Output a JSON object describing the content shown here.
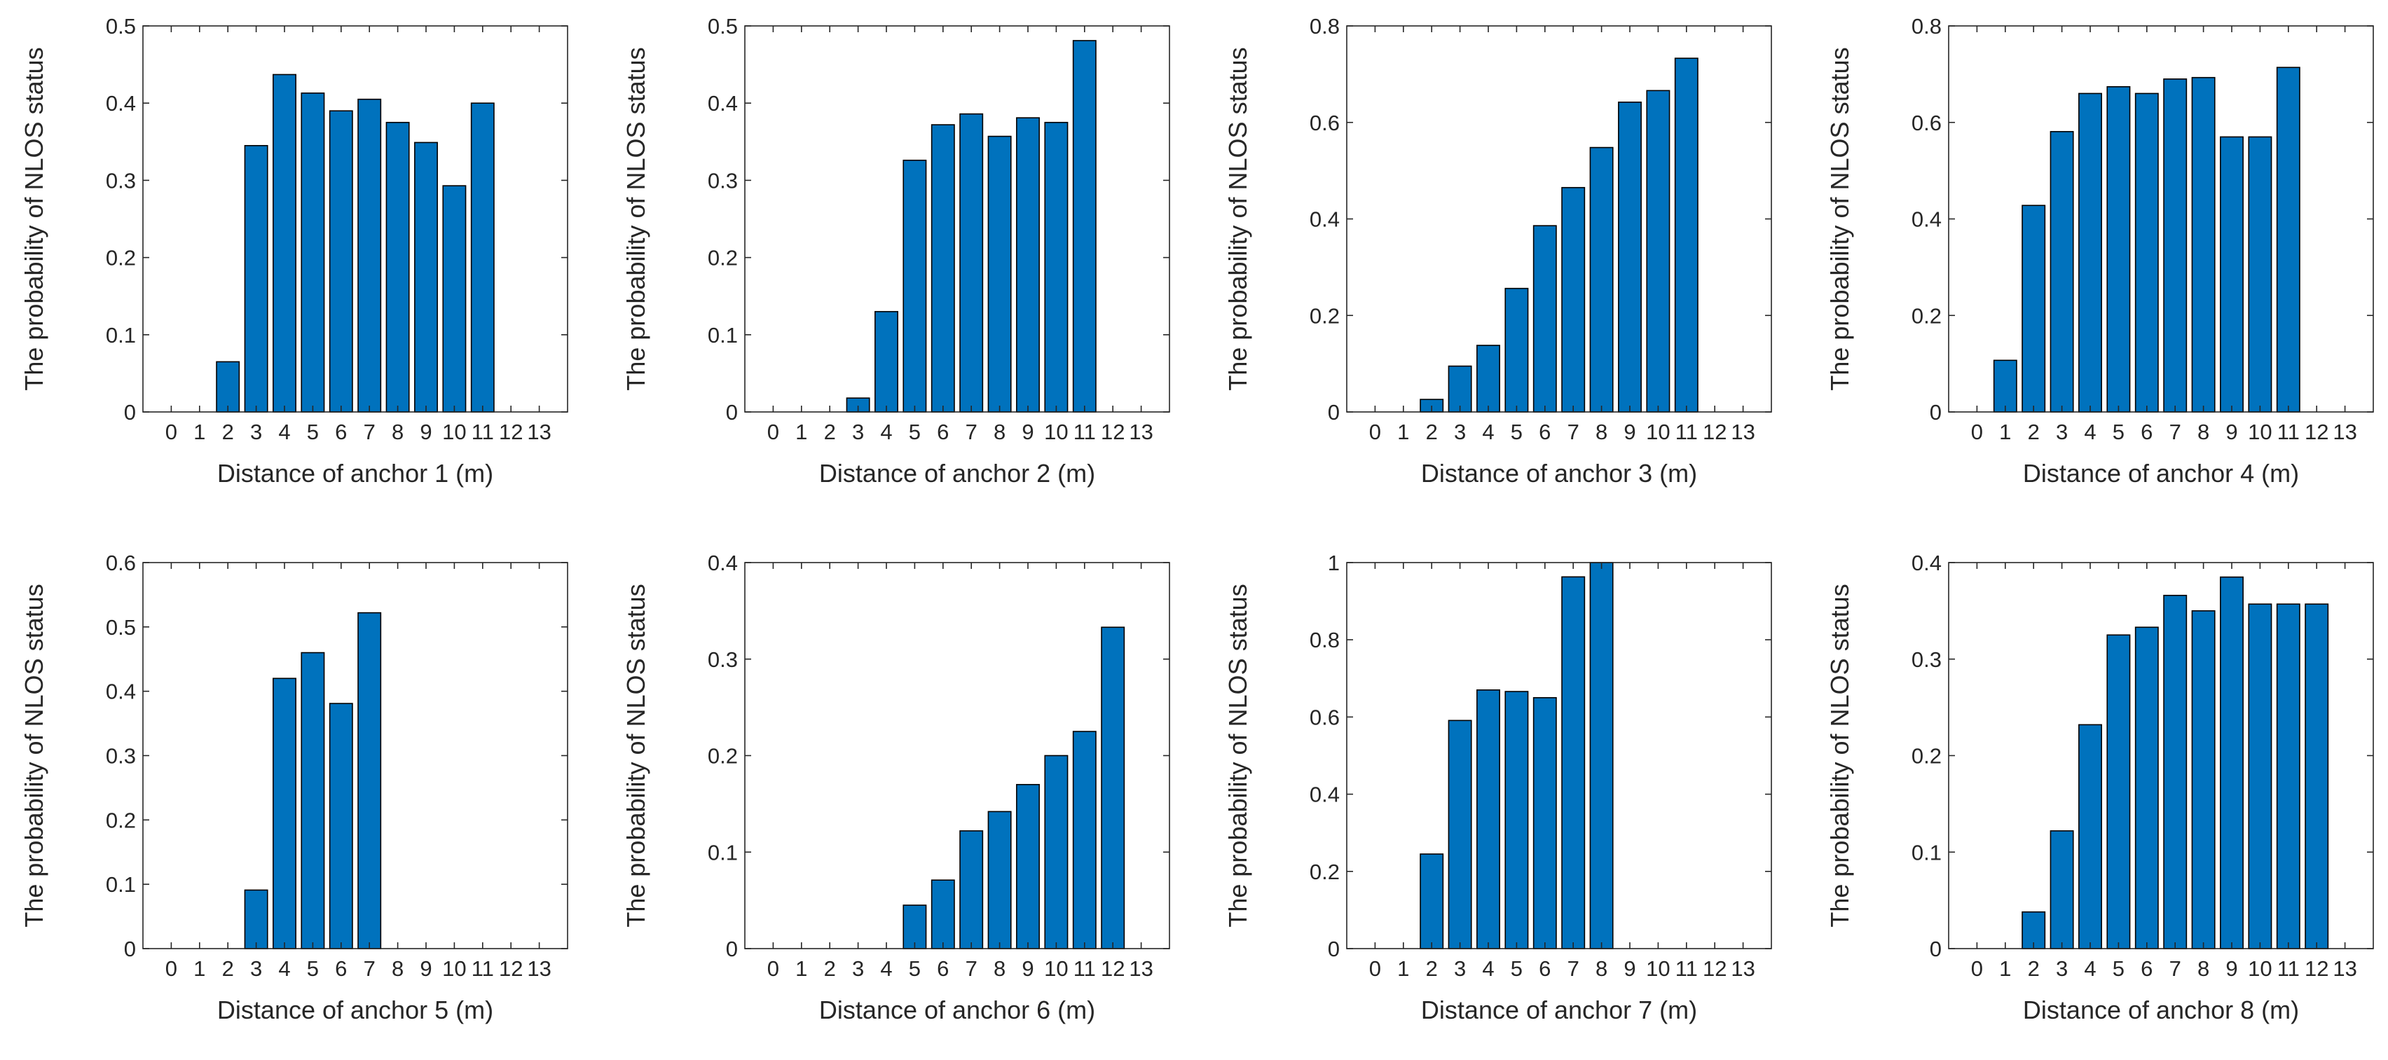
{
  "figure": {
    "bar_color": "#0072BD",
    "edge_color": "#000000",
    "axis_color": "#262626",
    "background": "#ffffff"
  },
  "chart_data": [
    {
      "type": "bar",
      "xlabel": "Distance of anchor 1 (m)",
      "ylabel": "The probability of NLOS status",
      "categories": [
        "0",
        "1",
        "2",
        "3",
        "4",
        "5",
        "6",
        "7",
        "8",
        "9",
        "10",
        "11",
        "12",
        "13"
      ],
      "values": [
        0,
        0,
        0.065,
        0.345,
        0.437,
        0.413,
        0.39,
        0.405,
        0.375,
        0.349,
        0.293,
        0.4,
        0,
        0
      ],
      "ylim": [
        0,
        0.5
      ],
      "yticks": [
        0,
        0.1,
        0.2,
        0.3,
        0.4,
        0.5
      ],
      "ytick_labels": [
        "0",
        "0.1",
        "0.2",
        "0.3",
        "0.4",
        "0.5"
      ]
    },
    {
      "type": "bar",
      "xlabel": "Distance of anchor 2 (m)",
      "ylabel": "The probability of NLOS status",
      "categories": [
        "0",
        "1",
        "2",
        "3",
        "4",
        "5",
        "6",
        "7",
        "8",
        "9",
        "10",
        "11",
        "12",
        "13"
      ],
      "values": [
        0,
        0,
        0,
        0.018,
        0.13,
        0.326,
        0.372,
        0.386,
        0.357,
        0.381,
        0.375,
        0.481,
        0,
        0
      ],
      "ylim": [
        0,
        0.5
      ],
      "yticks": [
        0,
        0.1,
        0.2,
        0.3,
        0.4,
        0.5
      ],
      "ytick_labels": [
        "0",
        "0.1",
        "0.2",
        "0.3",
        "0.4",
        "0.5"
      ]
    },
    {
      "type": "bar",
      "xlabel": "Distance of anchor 3 (m)",
      "ylabel": "The probability of NLOS status",
      "categories": [
        "0",
        "1",
        "2",
        "3",
        "4",
        "5",
        "6",
        "7",
        "8",
        "9",
        "10",
        "11",
        "12",
        "13"
      ],
      "values": [
        0,
        0,
        0.026,
        0.095,
        0.138,
        0.256,
        0.386,
        0.465,
        0.548,
        0.642,
        0.666,
        0.733,
        0,
        0
      ],
      "ylim": [
        0,
        0.8
      ],
      "yticks": [
        0,
        0.2,
        0.4,
        0.6,
        0.8
      ],
      "ytick_labels": [
        "0",
        "0.2",
        "0.4",
        "0.6",
        "0.8"
      ]
    },
    {
      "type": "bar",
      "xlabel": "Distance of anchor 4 (m)",
      "ylabel": "The probability of NLOS status",
      "categories": [
        "0",
        "1",
        "2",
        "3",
        "4",
        "5",
        "6",
        "7",
        "8",
        "9",
        "10",
        "11",
        "12",
        "13"
      ],
      "values": [
        0,
        0.107,
        0.428,
        0.581,
        0.66,
        0.674,
        0.66,
        0.69,
        0.693,
        0.57,
        0.57,
        0.714,
        0,
        0
      ],
      "ylim": [
        0,
        0.8
      ],
      "yticks": [
        0,
        0.2,
        0.4,
        0.6,
        0.8
      ],
      "ytick_labels": [
        "0",
        "0.2",
        "0.4",
        "0.6",
        "0.8"
      ]
    },
    {
      "type": "bar",
      "xlabel": "Distance of anchor 5 (m)",
      "ylabel": "The probability of NLOS status",
      "categories": [
        "0",
        "1",
        "2",
        "3",
        "4",
        "5",
        "6",
        "7",
        "8",
        "9",
        "10",
        "11",
        "12",
        "13"
      ],
      "values": [
        0,
        0,
        0,
        0.091,
        0.42,
        0.46,
        0.381,
        0.522,
        0,
        0,
        0,
        0,
        0,
        0
      ],
      "ylim": [
        0,
        0.6
      ],
      "yticks": [
        0,
        0.1,
        0.2,
        0.3,
        0.4,
        0.5,
        0.6
      ],
      "ytick_labels": [
        "0",
        "0.1",
        "0.2",
        "0.3",
        "0.4",
        "0.5",
        "0.6"
      ]
    },
    {
      "type": "bar",
      "xlabel": "Distance of anchor 6 (m)",
      "ylabel": "The probability of NLOS status",
      "categories": [
        "0",
        "1",
        "2",
        "3",
        "4",
        "5",
        "6",
        "7",
        "8",
        "9",
        "10",
        "11",
        "12",
        "13"
      ],
      "values": [
        0,
        0,
        0,
        0,
        0,
        0.045,
        0.071,
        0.122,
        0.142,
        0.17,
        0.2,
        0.225,
        0.333,
        0
      ],
      "ylim": [
        0,
        0.4
      ],
      "yticks": [
        0,
        0.1,
        0.2,
        0.3,
        0.4
      ],
      "ytick_labels": [
        "0",
        "0.1",
        "0.2",
        "0.3",
        "0.4"
      ]
    },
    {
      "type": "bar",
      "xlabel": "Distance of anchor 7 (m)",
      "ylabel": "The probability of NLOS status",
      "categories": [
        "0",
        "1",
        "2",
        "3",
        "4",
        "5",
        "6",
        "7",
        "8",
        "9",
        "10",
        "11",
        "12",
        "13"
      ],
      "values": [
        0,
        0,
        0.245,
        0.591,
        0.67,
        0.666,
        0.65,
        0.963,
        1.0,
        0,
        0,
        0,
        0,
        0
      ],
      "ylim": [
        0,
        1
      ],
      "yticks": [
        0,
        0.2,
        0.4,
        0.6,
        0.8,
        1
      ],
      "ytick_labels": [
        "0",
        "0.2",
        "0.4",
        "0.6",
        "0.8",
        "1"
      ]
    },
    {
      "type": "bar",
      "xlabel": "Distance of anchor 8 (m)",
      "ylabel": "The probability of NLOS status",
      "categories": [
        "0",
        "1",
        "2",
        "3",
        "4",
        "5",
        "6",
        "7",
        "8",
        "9",
        "10",
        "11",
        "12",
        "13"
      ],
      "values": [
        0,
        0,
        0.038,
        0.122,
        0.232,
        0.325,
        0.333,
        0.366,
        0.35,
        0.385,
        0.357,
        0.357,
        0.357,
        0
      ],
      "ylim": [
        0,
        0.4
      ],
      "yticks": [
        0,
        0.1,
        0.2,
        0.3,
        0.4
      ],
      "ytick_labels": [
        "0",
        "0.1",
        "0.2",
        "0.3",
        "0.4"
      ]
    }
  ]
}
